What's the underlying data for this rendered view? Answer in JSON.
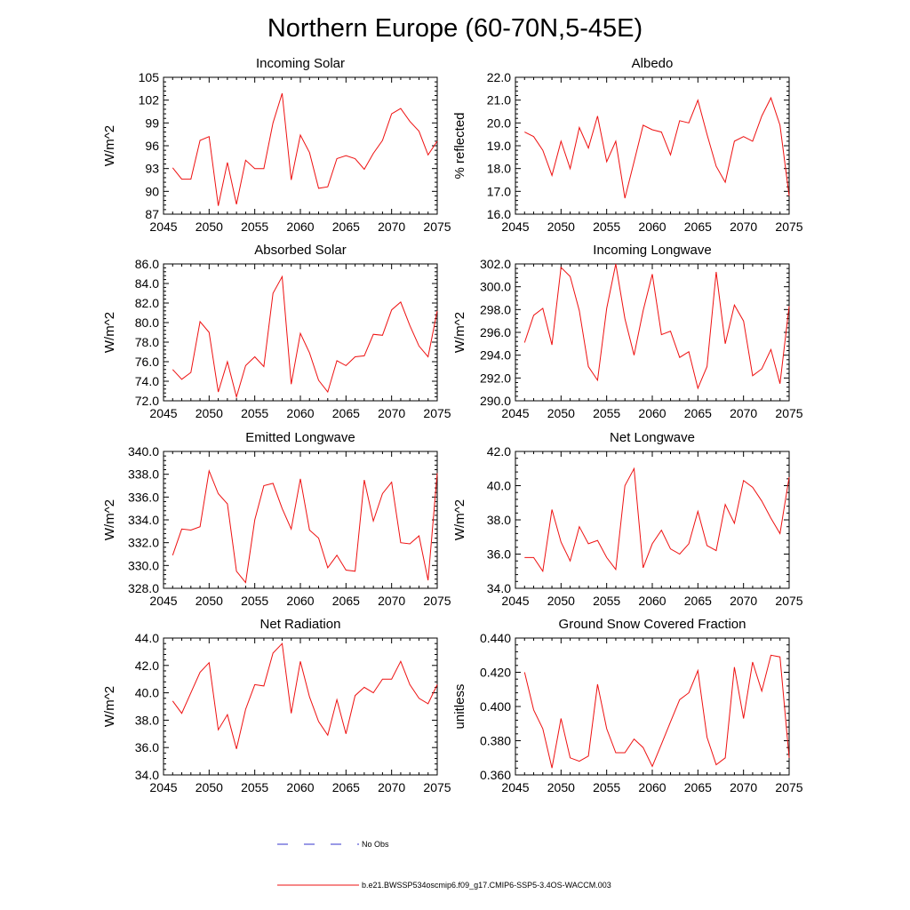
{
  "figure": {
    "title": "Northern Europe (60-70N,5-45E)",
    "legend": [
      {
        "label": "No Obs",
        "color": "#3333cc",
        "dash": "dashed"
      },
      {
        "label": "b.e21.BWSSP534oscmip6.f09_g17.CMIP6-SSP5-3.4OS-WACCM.003",
        "color": "#ee1111",
        "dash": "solid"
      }
    ]
  },
  "chart_data": [
    {
      "type": "line",
      "title": "Incoming Solar",
      "xlabel": "",
      "ylabel": "W/m^2",
      "xlim": [
        2045,
        2075
      ],
      "ylim": [
        87,
        105
      ],
      "xticks": [
        "2045",
        "2050",
        "2055",
        "2060",
        "2065",
        "2070",
        "2075"
      ],
      "yticks": [
        "87",
        "90",
        "93",
        "96",
        "99",
        "102",
        "105"
      ],
      "color": "#ee1111",
      "x": [
        2046,
        2047,
        2048,
        2049,
        2050,
        2051,
        2052,
        2053,
        2054,
        2055,
        2056,
        2057,
        2058,
        2059,
        2060,
        2061,
        2062,
        2063,
        2064,
        2065,
        2066,
        2067,
        2068,
        2069,
        2070,
        2071,
        2072,
        2073,
        2074,
        2075
      ],
      "y": [
        93.1,
        91.6,
        91.6,
        96.7,
        97.2,
        88.1,
        93.8,
        88.3,
        94.1,
        93.0,
        93.0,
        99.0,
        102.9,
        91.5,
        97.4,
        95.1,
        90.4,
        90.6,
        94.3,
        94.7,
        94.3,
        92.9,
        95.0,
        96.7,
        100.2,
        100.9,
        99.2,
        97.9,
        94.8,
        96.6
      ]
    },
    {
      "type": "line",
      "title": "Albedo",
      "xlabel": "",
      "ylabel": "% reflected",
      "xlim": [
        2045,
        2075
      ],
      "ylim": [
        16.0,
        22.0
      ],
      "xticks": [
        "2045",
        "2050",
        "2055",
        "2060",
        "2065",
        "2070",
        "2075"
      ],
      "yticks": [
        "16.0",
        "17.0",
        "18.0",
        "19.0",
        "20.0",
        "21.0",
        "22.0"
      ],
      "color": "#ee1111",
      "x": [
        2046,
        2047,
        2048,
        2049,
        2050,
        2051,
        2052,
        2053,
        2054,
        2055,
        2056,
        2057,
        2058,
        2059,
        2060,
        2061,
        2062,
        2063,
        2064,
        2065,
        2066,
        2067,
        2068,
        2069,
        2070,
        2071,
        2072,
        2073,
        2074,
        2075
      ],
      "y": [
        19.6,
        19.4,
        18.8,
        17.7,
        19.2,
        18.0,
        19.8,
        18.9,
        20.3,
        18.3,
        19.2,
        16.7,
        18.3,
        19.9,
        19.7,
        19.6,
        18.6,
        20.1,
        20.0,
        21.0,
        19.5,
        18.1,
        17.4,
        19.2,
        19.4,
        19.2,
        20.3,
        21.1,
        19.9,
        16.8
      ]
    },
    {
      "type": "line",
      "title": "Absorbed Solar",
      "xlabel": "",
      "ylabel": "W/m^2",
      "xlim": [
        2045,
        2075
      ],
      "ylim": [
        72.0,
        86.0
      ],
      "xticks": [
        "2045",
        "2050",
        "2055",
        "2060",
        "2065",
        "2070",
        "2075"
      ],
      "yticks": [
        "72.0",
        "74.0",
        "76.0",
        "78.0",
        "80.0",
        "82.0",
        "84.0",
        "86.0"
      ],
      "color": "#ee1111",
      "x": [
        2046,
        2047,
        2048,
        2049,
        2050,
        2051,
        2052,
        2053,
        2054,
        2055,
        2056,
        2057,
        2058,
        2059,
        2060,
        2061,
        2062,
        2063,
        2064,
        2065,
        2066,
        2067,
        2068,
        2069,
        2070,
        2071,
        2072,
        2073,
        2074,
        2075
      ],
      "y": [
        75.2,
        74.2,
        74.9,
        80.1,
        79.0,
        72.9,
        76.0,
        72.4,
        75.6,
        76.5,
        75.5,
        83.0,
        84.7,
        73.7,
        78.9,
        76.9,
        74.1,
        72.9,
        76.1,
        75.6,
        76.5,
        76.6,
        78.8,
        78.7,
        81.3,
        82.1,
        79.7,
        77.6,
        76.5,
        81.2
      ]
    },
    {
      "type": "line",
      "title": "Incoming Longwave",
      "xlabel": "",
      "ylabel": "W/m^2",
      "xlim": [
        2045,
        2075
      ],
      "ylim": [
        290.0,
        302.0
      ],
      "xticks": [
        "2045",
        "2050",
        "2055",
        "2060",
        "2065",
        "2070",
        "2075"
      ],
      "yticks": [
        "290.0",
        "292.0",
        "294.0",
        "296.0",
        "298.0",
        "300.0",
        "302.0"
      ],
      "color": "#ee1111",
      "x": [
        2046,
        2047,
        2048,
        2049,
        2050,
        2051,
        2052,
        2053,
        2054,
        2055,
        2056,
        2057,
        2058,
        2059,
        2060,
        2061,
        2062,
        2063,
        2064,
        2065,
        2066,
        2067,
        2068,
        2069,
        2070,
        2071,
        2072,
        2073,
        2074,
        2075
      ],
      "y": [
        295.1,
        297.5,
        298.1,
        294.9,
        301.7,
        300.9,
        297.9,
        293.0,
        291.8,
        298.1,
        302.0,
        297.2,
        294.0,
        297.9,
        301.1,
        295.8,
        296.1,
        293.8,
        294.3,
        291.1,
        293.0,
        301.3,
        295.0,
        298.4,
        297.0,
        292.2,
        292.8,
        294.5,
        291.5,
        298.3
      ]
    },
    {
      "type": "line",
      "title": "Emitted Longwave",
      "xlabel": "",
      "ylabel": "W/m^2",
      "xlim": [
        2045,
        2075
      ],
      "ylim": [
        328.0,
        340.0
      ],
      "xticks": [
        "2045",
        "2050",
        "2055",
        "2060",
        "2065",
        "2070",
        "2075"
      ],
      "yticks": [
        "328.0",
        "330.0",
        "332.0",
        "334.0",
        "336.0",
        "338.0",
        "340.0"
      ],
      "color": "#ee1111",
      "x": [
        2046,
        2047,
        2048,
        2049,
        2050,
        2051,
        2052,
        2053,
        2054,
        2055,
        2056,
        2057,
        2058,
        2059,
        2060,
        2061,
        2062,
        2063,
        2064,
        2065,
        2066,
        2067,
        2068,
        2069,
        2070,
        2071,
        2072,
        2073,
        2074,
        2075
      ],
      "y": [
        330.9,
        333.2,
        333.1,
        333.4,
        338.3,
        336.3,
        335.4,
        329.5,
        328.5,
        334.0,
        337.0,
        337.2,
        335.0,
        333.2,
        337.6,
        333.1,
        332.4,
        329.8,
        330.9,
        329.6,
        329.5,
        337.5,
        333.9,
        336.3,
        337.3,
        332.0,
        331.9,
        332.6,
        328.7,
        338.1
      ]
    },
    {
      "type": "line",
      "title": "Net Longwave",
      "xlabel": "",
      "ylabel": "W/m^2",
      "xlim": [
        2045,
        2075
      ],
      "ylim": [
        34.0,
        42.0
      ],
      "xticks": [
        "2045",
        "2050",
        "2055",
        "2060",
        "2065",
        "2070",
        "2075"
      ],
      "yticks": [
        "34.0",
        "36.0",
        "38.0",
        "40.0",
        "42.0"
      ],
      "color": "#ee1111",
      "x": [
        2046,
        2047,
        2048,
        2049,
        2050,
        2051,
        2052,
        2053,
        2054,
        2055,
        2056,
        2057,
        2058,
        2059,
        2060,
        2061,
        2062,
        2063,
        2064,
        2065,
        2066,
        2067,
        2068,
        2069,
        2070,
        2071,
        2072,
        2073,
        2074,
        2075
      ],
      "y": [
        35.8,
        35.8,
        35.0,
        38.6,
        36.7,
        35.6,
        37.6,
        36.6,
        36.8,
        35.8,
        35.1,
        40.0,
        41.0,
        35.2,
        36.6,
        37.4,
        36.3,
        36.0,
        36.6,
        38.5,
        36.5,
        36.2,
        38.9,
        37.8,
        40.3,
        39.9,
        39.1,
        38.1,
        37.2,
        40.5
      ]
    },
    {
      "type": "line",
      "title": "Net Radiation",
      "xlabel": "",
      "ylabel": "W/m^2",
      "xlim": [
        2045,
        2075
      ],
      "ylim": [
        34.0,
        44.0
      ],
      "xticks": [
        "2045",
        "2050",
        "2055",
        "2060",
        "2065",
        "2070",
        "2075"
      ],
      "yticks": [
        "34.0",
        "36.0",
        "38.0",
        "40.0",
        "42.0",
        "44.0"
      ],
      "color": "#ee1111",
      "x": [
        2046,
        2047,
        2048,
        2049,
        2050,
        2051,
        2052,
        2053,
        2054,
        2055,
        2056,
        2057,
        2058,
        2059,
        2060,
        2061,
        2062,
        2063,
        2064,
        2065,
        2066,
        2067,
        2068,
        2069,
        2070,
        2071,
        2072,
        2073,
        2074,
        2075
      ],
      "y": [
        39.4,
        38.5,
        40.0,
        41.5,
        42.2,
        37.3,
        38.4,
        35.9,
        38.8,
        40.6,
        40.5,
        42.9,
        43.6,
        38.5,
        42.3,
        39.7,
        37.9,
        36.9,
        39.5,
        37.0,
        39.8,
        40.4,
        40.0,
        41.0,
        41.0,
        42.3,
        40.6,
        39.6,
        39.2,
        40.6
      ]
    },
    {
      "type": "line",
      "title": "Ground Snow Covered Fraction",
      "xlabel": "",
      "ylabel": "unitless",
      "xlim": [
        2045,
        2075
      ],
      "ylim": [
        0.36,
        0.44
      ],
      "xticks": [
        "2045",
        "2050",
        "2055",
        "2060",
        "2065",
        "2070",
        "2075"
      ],
      "yticks": [
        "0.360",
        "0.380",
        "0.400",
        "0.420",
        "0.440"
      ],
      "color": "#ee1111",
      "x": [
        2046,
        2047,
        2048,
        2049,
        2050,
        2051,
        2052,
        2053,
        2054,
        2055,
        2056,
        2057,
        2058,
        2059,
        2060,
        2061,
        2062,
        2063,
        2064,
        2065,
        2066,
        2067,
        2068,
        2069,
        2070,
        2071,
        2072,
        2073,
        2074,
        2075
      ],
      "y": [
        0.42,
        0.398,
        0.387,
        0.364,
        0.393,
        0.37,
        0.368,
        0.371,
        0.413,
        0.387,
        0.373,
        0.373,
        0.381,
        0.376,
        0.365,
        0.378,
        0.391,
        0.404,
        0.408,
        0.421,
        0.382,
        0.366,
        0.37,
        0.423,
        0.393,
        0.426,
        0.409,
        0.43,
        0.429,
        0.37
      ]
    }
  ]
}
